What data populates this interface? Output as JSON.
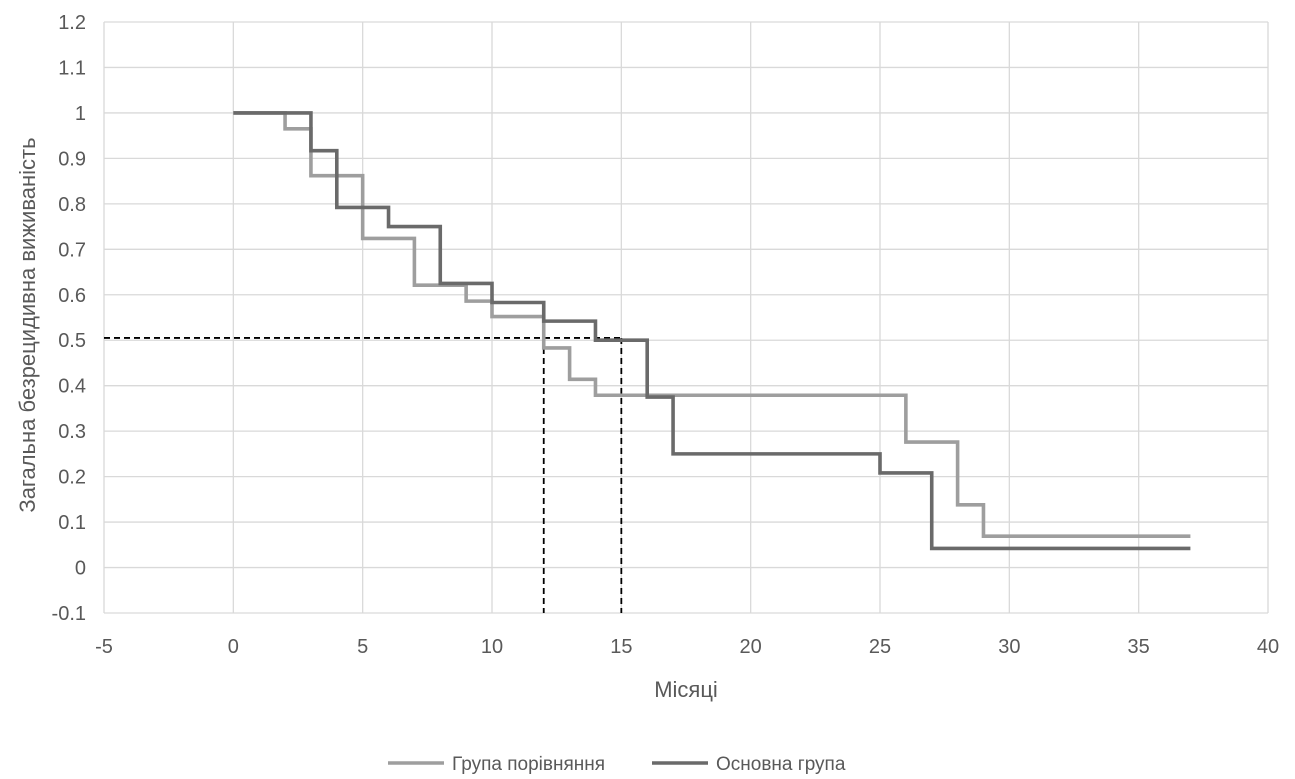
{
  "chart_data": {
    "type": "line",
    "step": true,
    "xlabel": "Місяці",
    "ylabel": "Загальна безрецидивна виживаність",
    "xlim": [
      -5,
      40
    ],
    "ylim": [
      -0.1,
      1.2
    ],
    "xticks": [
      -5,
      0,
      5,
      10,
      15,
      20,
      25,
      30,
      35,
      40
    ],
    "xtick_labels": [
      "-5",
      "0",
      "5",
      "10",
      "15",
      "20",
      "25",
      "30",
      "35",
      "40"
    ],
    "yticks": [
      -0.1,
      0,
      0.1,
      0.2,
      0.3,
      0.4,
      0.5,
      0.6,
      0.7,
      0.8,
      0.9,
      1,
      1.1,
      1.2
    ],
    "ytick_labels": [
      "-0.1",
      "0",
      "0.1",
      "0.2",
      "0.3",
      "0.4",
      "0.5",
      "0.6",
      "0.7",
      "0.8",
      "0.9",
      "1",
      "1.1",
      "1.2"
    ],
    "grid": true,
    "legend_position": "bottom",
    "series": [
      {
        "name": "Група порівняння",
        "color": "#9e9e9e",
        "x": [
          0,
          2,
          3,
          5,
          7,
          9,
          10,
          12,
          13,
          14,
          26,
          28,
          29,
          37
        ],
        "y": [
          1.0,
          0.965,
          0.862,
          0.724,
          0.621,
          0.586,
          0.552,
          0.483,
          0.414,
          0.379,
          0.276,
          0.138,
          0.069,
          0.069
        ]
      },
      {
        "name": "Основна група",
        "color": "#6a6a6a",
        "x": [
          0,
          3,
          4,
          6,
          8,
          10,
          12,
          14,
          16,
          17,
          25,
          27,
          37
        ],
        "y": [
          1.0,
          0.917,
          0.792,
          0.75,
          0.625,
          0.583,
          0.542,
          0.5,
          0.375,
          0.25,
          0.208,
          0.042,
          0.042
        ]
      }
    ],
    "reference_lines": [
      {
        "y": 0.505,
        "x_end": 15,
        "style": "dashed"
      },
      {
        "x": 12,
        "y_top": 0.505,
        "style": "dashed"
      },
      {
        "x": 15,
        "y_top": 0.505,
        "style": "dashed"
      }
    ]
  }
}
